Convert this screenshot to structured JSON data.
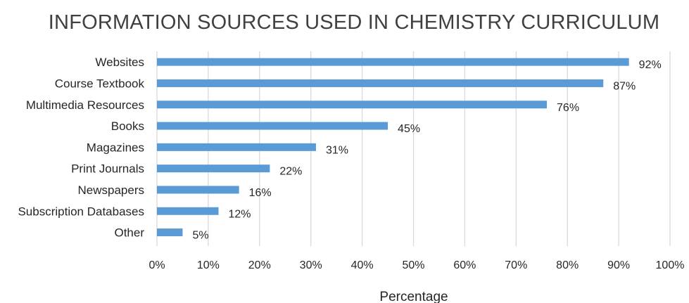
{
  "chart_data": {
    "type": "bar",
    "orientation": "horizontal",
    "title": "INFORMATION SOURCES USED IN CHEMISTRY CURRICULUM",
    "xlabel": "Percentage",
    "ylabel": "",
    "categories": [
      "Websites",
      "Course Textbook",
      "Multimedia Resources",
      "Books",
      "Magazines",
      "Print Journals",
      "Newspapers",
      "Subscription Databases",
      "Other"
    ],
    "values": [
      92,
      87,
      76,
      45,
      31,
      22,
      16,
      12,
      5
    ],
    "data_labels": [
      "92%",
      "87%",
      "76%",
      "45%",
      "31%",
      "22%",
      "16%",
      "12%",
      "5%"
    ],
    "xlim": [
      0,
      100
    ],
    "x_ticks": [
      "0%",
      "10%",
      "20%",
      "30%",
      "40%",
      "50%",
      "60%",
      "70%",
      "80%",
      "90%",
      "100%"
    ],
    "grid": "vertical",
    "legend": "none",
    "bar_color": "#5b9bd5",
    "grid_color": "#d9d9d9",
    "text_color": "#262626",
    "title_color": "#404040"
  }
}
